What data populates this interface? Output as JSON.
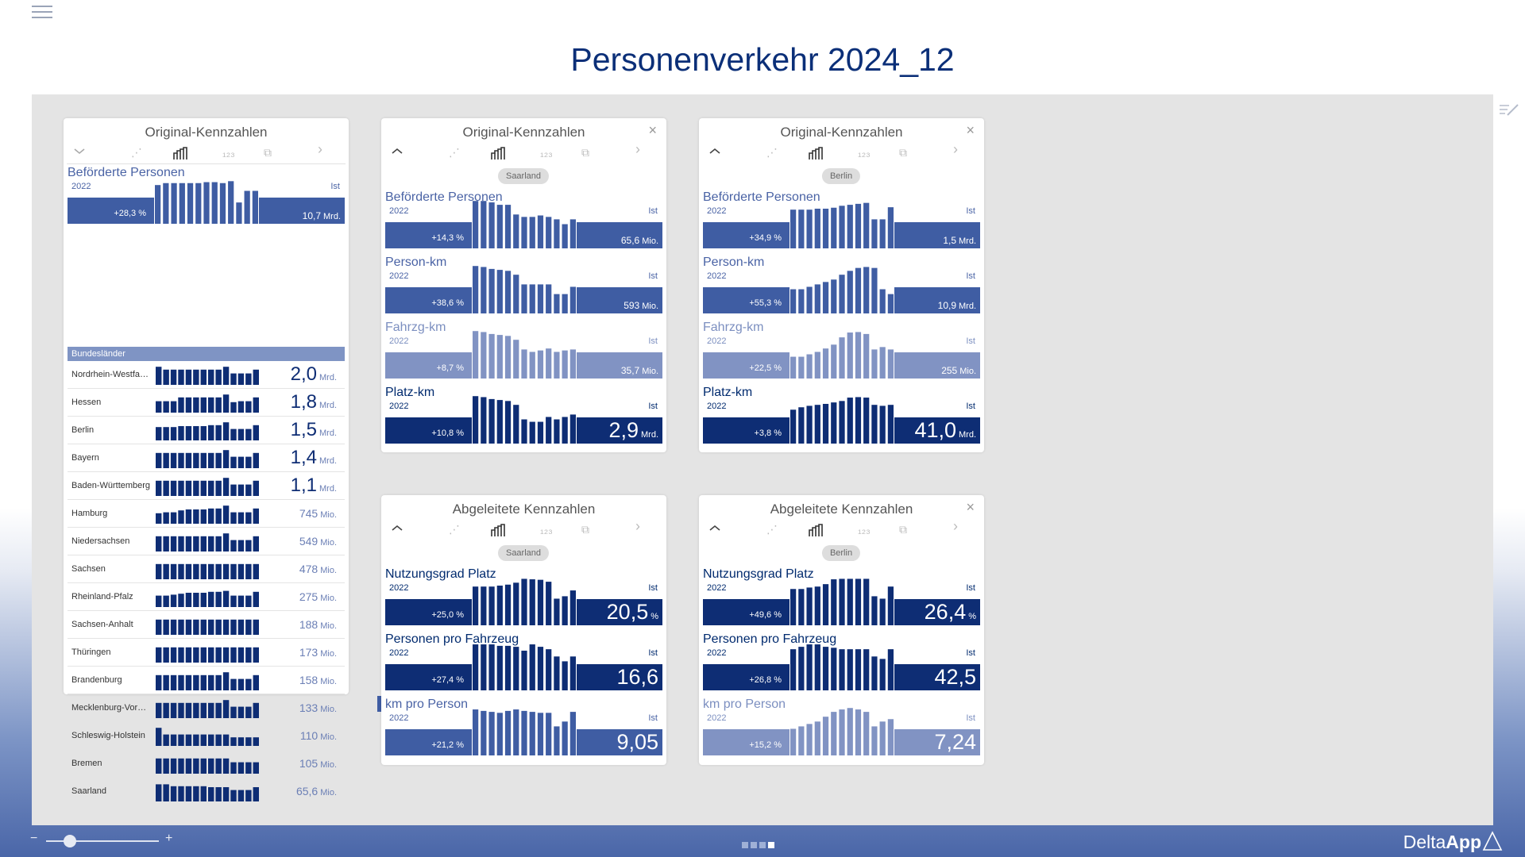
{
  "page": {
    "title": "Personenverkehr 2024_12"
  },
  "footer": {
    "brand_delta": "Delta",
    "brand_app": "App",
    "zoom_minus": "−",
    "zoom_plus": "+",
    "zoom_value": 0.2,
    "pages": 4,
    "current_page": 4
  },
  "colors": {
    "dark": "#0e2d74",
    "mid": "#3f5da3",
    "light": "#8193c3"
  },
  "cards": [
    {
      "id": "card1",
      "title": "Original-Kennzahlen",
      "collapse": "˅",
      "closable": false,
      "pill": null,
      "toolbar": [
        "chevron-down-icon",
        "share-icon",
        "bars-icon",
        "ranking-icon",
        "copy-icon",
        "chevron-right-icon"
      ],
      "kpis": [
        {
          "name": "Beförderte Personen",
          "year": "2022",
          "ist": "Ist",
          "delta": "+28,3 %",
          "value": "10,7",
          "unit": "Mrd.",
          "style": "mid",
          "big": false,
          "spark": [
            80,
            84,
            84,
            84,
            84,
            84,
            86,
            86,
            84,
            88,
            44,
            68,
            68
          ]
        }
      ],
      "list_header": "Bundesländer",
      "list": [
        {
          "name": "Nordrhein-Westfa…",
          "value": "2,0",
          "unit": "Mrd.",
          "big": true,
          "spark": [
            95,
            80,
            80,
            80,
            80,
            80,
            80,
            80,
            80,
            95,
            60,
            60,
            60,
            80
          ]
        },
        {
          "name": "Hessen",
          "value": "1,8",
          "unit": "Mrd.",
          "big": true,
          "spark": [
            60,
            60,
            60,
            80,
            80,
            80,
            80,
            80,
            80,
            95,
            55,
            60,
            60,
            80
          ]
        },
        {
          "name": "Berlin",
          "value": "1,5",
          "unit": "Mrd.",
          "big": true,
          "spark": [
            70,
            70,
            70,
            75,
            75,
            75,
            75,
            80,
            80,
            95,
            60,
            60,
            60,
            80
          ]
        },
        {
          "name": "Bayern",
          "value": "1,4",
          "unit": "Mrd.",
          "big": true,
          "spark": [
            80,
            80,
            80,
            80,
            80,
            80,
            80,
            80,
            80,
            95,
            60,
            60,
            60,
            80
          ]
        },
        {
          "name": "Baden-Württemberg",
          "value": "1,1",
          "unit": "Mrd.",
          "big": true,
          "spark": [
            80,
            80,
            80,
            80,
            80,
            80,
            80,
            80,
            80,
            95,
            60,
            60,
            60,
            80
          ]
        },
        {
          "name": "Hamburg",
          "value": "745",
          "unit": "Mio.",
          "big": false,
          "spark": [
            55,
            60,
            60,
            70,
            75,
            75,
            75,
            80,
            80,
            95,
            60,
            60,
            60,
            80
          ]
        },
        {
          "name": "Niedersachsen",
          "value": "549",
          "unit": "Mio.",
          "big": false,
          "spark": [
            80,
            80,
            80,
            80,
            80,
            80,
            80,
            80,
            80,
            95,
            60,
            60,
            60,
            80
          ]
        },
        {
          "name": "Sachsen",
          "value": "478",
          "unit": "Mio.",
          "big": false,
          "spark": [
            80,
            80,
            80,
            80,
            80,
            80,
            80,
            80,
            80,
            80,
            80,
            80,
            80,
            80
          ]
        },
        {
          "name": "Rheinland-Pfalz",
          "value": "275",
          "unit": "Mio.",
          "big": false,
          "spark": [
            60,
            60,
            65,
            70,
            75,
            75,
            75,
            80,
            80,
            85,
            60,
            60,
            60,
            80
          ]
        },
        {
          "name": "Sachsen-Anhalt",
          "value": "188",
          "unit": "Mio.",
          "big": false,
          "spark": [
            80,
            80,
            80,
            80,
            80,
            80,
            80,
            80,
            80,
            80,
            80,
            80,
            80,
            80
          ]
        },
        {
          "name": "Thüringen",
          "value": "173",
          "unit": "Mio.",
          "big": false,
          "spark": [
            80,
            80,
            80,
            80,
            80,
            80,
            80,
            80,
            80,
            80,
            80,
            80,
            80,
            80
          ]
        },
        {
          "name": "Brandenburg",
          "value": "158",
          "unit": "Mio.",
          "big": false,
          "spark": [
            80,
            80,
            80,
            80,
            80,
            80,
            80,
            80,
            80,
            95,
            60,
            60,
            60,
            80
          ]
        },
        {
          "name": "Mecklenburg-Vor…",
          "value": "133",
          "unit": "Mio.",
          "big": false,
          "spark": [
            80,
            80,
            80,
            80,
            80,
            80,
            80,
            80,
            80,
            95,
            60,
            60,
            60,
            80
          ]
        },
        {
          "name": "Schleswig-Holstein",
          "value": "110",
          "unit": "Mio.",
          "big": false,
          "spark": [
            95,
            60,
            60,
            60,
            60,
            60,
            60,
            60,
            60,
            60,
            45,
            45,
            45,
            45
          ]
        },
        {
          "name": "Bremen",
          "value": "105",
          "unit": "Mio.",
          "big": false,
          "spark": [
            80,
            80,
            80,
            80,
            80,
            80,
            80,
            80,
            80,
            80,
            60,
            60,
            60,
            60
          ]
        },
        {
          "name": "Saarland",
          "value": "65,6",
          "unit": "Mio.",
          "big": false,
          "spark": [
            90,
            90,
            80,
            80,
            80,
            80,
            80,
            75,
            75,
            75,
            60,
            60,
            60,
            75
          ]
        }
      ]
    },
    {
      "id": "card2",
      "title": "Original-Kennzahlen",
      "collapse": "˄",
      "closable": true,
      "pill": "Saarland",
      "toolbar": [
        "chevron-up-icon",
        "share-icon",
        "bars-icon",
        "ranking-icon",
        "copy-icon",
        "chevron-right-icon"
      ],
      "kpis": [
        {
          "name": "Beförderte Personen",
          "year": "2022",
          "ist": "Ist",
          "delta": "+14,3 %",
          "value": "65,6",
          "unit": "Mio.",
          "style": "mid",
          "big": false,
          "spark": [
            98,
            98,
            95,
            90,
            90,
            70,
            65,
            65,
            68,
            65,
            60,
            50,
            60
          ]
        },
        {
          "name": "Person-km",
          "year": "2022",
          "ist": "Ist",
          "delta": "+38,6 %",
          "value": "593",
          "unit": "Mio.",
          "style": "mid",
          "big": false,
          "spark": [
            98,
            96,
            92,
            90,
            88,
            80,
            60,
            60,
            60,
            60,
            40,
            40,
            55
          ]
        },
        {
          "name": "Fahrzg-km",
          "year": "2022",
          "ist": "Ist",
          "delta": "+8,7 %",
          "value": "35,7",
          "unit": "Mio.",
          "style": "light",
          "big": false,
          "spark": [
            98,
            96,
            92,
            90,
            88,
            80,
            60,
            55,
            58,
            62,
            55,
            58,
            60
          ]
        },
        {
          "name": "Platz-km",
          "year": "2022",
          "ist": "Ist",
          "delta": "+10,8 %",
          "value": "2,9",
          "unit": "Mrd.",
          "style": "dark",
          "big": true,
          "spark": [
            98,
            96,
            92,
            90,
            88,
            80,
            50,
            45,
            45,
            55,
            50,
            55,
            60
          ]
        }
      ]
    },
    {
      "id": "card3",
      "title": "Original-Kennzahlen",
      "collapse": "˄",
      "closable": true,
      "pill": "Berlin",
      "toolbar": [
        "chevron-up-icon",
        "share-icon",
        "bars-icon",
        "ranking-icon",
        "copy-icon",
        "chevron-right-icon"
      ],
      "kpis": [
        {
          "name": "Beförderte Personen",
          "year": "2022",
          "ist": "Ist",
          "delta": "+34,9 %",
          "value": "1,5",
          "unit": "Mrd.",
          "style": "mid",
          "big": false,
          "spark": [
            80,
            80,
            80,
            82,
            82,
            84,
            88,
            90,
            92,
            94,
            60,
            60,
            85
          ]
        },
        {
          "name": "Person-km",
          "year": "2022",
          "ist": "Ist",
          "delta": "+55,3 %",
          "value": "10,9",
          "unit": "Mrd.",
          "style": "mid",
          "big": false,
          "spark": [
            50,
            50,
            55,
            60,
            65,
            70,
            80,
            88,
            94,
            96,
            94,
            50,
            40
          ]
        },
        {
          "name": "Fahrzg-km",
          "year": "2022",
          "ist": "Ist",
          "delta": "+22,5 %",
          "value": "255",
          "unit": "Mio.",
          "style": "light",
          "big": false,
          "spark": [
            45,
            45,
            50,
            55,
            62,
            70,
            85,
            95,
            96,
            92,
            60,
            65,
            60
          ]
        },
        {
          "name": "Platz-km",
          "year": "2022",
          "ist": "Ist",
          "delta": "+3,8 %",
          "value": "41,0",
          "unit": "Mrd.",
          "style": "dark",
          "big": true,
          "spark": [
            70,
            75,
            78,
            80,
            82,
            85,
            88,
            95,
            96,
            95,
            80,
            78,
            80
          ]
        }
      ]
    },
    {
      "id": "card4",
      "title": "Abgeleitete Kennzahlen",
      "collapse": "˄",
      "closable": false,
      "pill": "Saarland",
      "toolbar": [
        "chevron-up-icon",
        "share-icon",
        "bars-icon",
        "ranking-icon",
        "copy-icon",
        "chevron-right-icon"
      ],
      "kpis": [
        {
          "name": "Nutzungsgrad Platz",
          "year": "2022",
          "ist": "Ist",
          "delta": "+25,0 %",
          "value": "20,5",
          "unit": "%",
          "style": "dark",
          "big": true,
          "spark": [
            80,
            80,
            80,
            82,
            84,
            88,
            96,
            95,
            94,
            90,
            55,
            60,
            72
          ]
        },
        {
          "name": "Personen pro Fahrzeug",
          "year": "2022",
          "ist": "Ist",
          "delta": "+27,4 %",
          "value": "16,6",
          "unit": "",
          "style": "dark",
          "big": true,
          "spark": [
            95,
            95,
            95,
            92,
            92,
            90,
            82,
            95,
            90,
            85,
            70,
            60,
            70
          ]
        },
        {
          "name": "km pro Person",
          "year": "2022",
          "ist": "Ist",
          "delta": "+21,2 %",
          "value": "9,05",
          "unit": "",
          "style": "mid",
          "big": true,
          "spark": [
            95,
            92,
            90,
            88,
            92,
            95,
            92,
            90,
            88,
            88,
            60,
            70,
            90
          ]
        }
      ]
    },
    {
      "id": "card5",
      "title": "Abgeleitete Kennzahlen",
      "collapse": "˄",
      "closable": true,
      "pill": "Berlin",
      "toolbar": [
        "chevron-up-icon",
        "share-icon",
        "bars-icon",
        "ranking-icon",
        "copy-icon",
        "chevron-right-icon"
      ],
      "kpis": [
        {
          "name": "Nutzungsgrad Platz",
          "year": "2022",
          "ist": "Ist",
          "delta": "+49,6 %",
          "value": "26,4",
          "unit": "%",
          "style": "dark",
          "big": true,
          "spark": [
            75,
            75,
            78,
            80,
            85,
            95,
            96,
            96,
            96,
            96,
            60,
            55,
            80
          ]
        },
        {
          "name": "Personen pro Fahrzeug",
          "year": "2022",
          "ist": "Ist",
          "delta": "+26,8 %",
          "value": "42,5",
          "unit": "",
          "style": "dark",
          "big": true,
          "spark": [
            85,
            90,
            95,
            95,
            90,
            88,
            85,
            85,
            85,
            85,
            70,
            65,
            85
          ]
        },
        {
          "name": "km pro Person",
          "year": "2022",
          "ist": "Ist",
          "delta": "+15,2 %",
          "value": "7,24",
          "unit": "",
          "style": "light",
          "big": true,
          "spark": [
            55,
            60,
            65,
            70,
            80,
            90,
            95,
            98,
            95,
            90,
            60,
            70,
            75
          ]
        }
      ]
    }
  ]
}
